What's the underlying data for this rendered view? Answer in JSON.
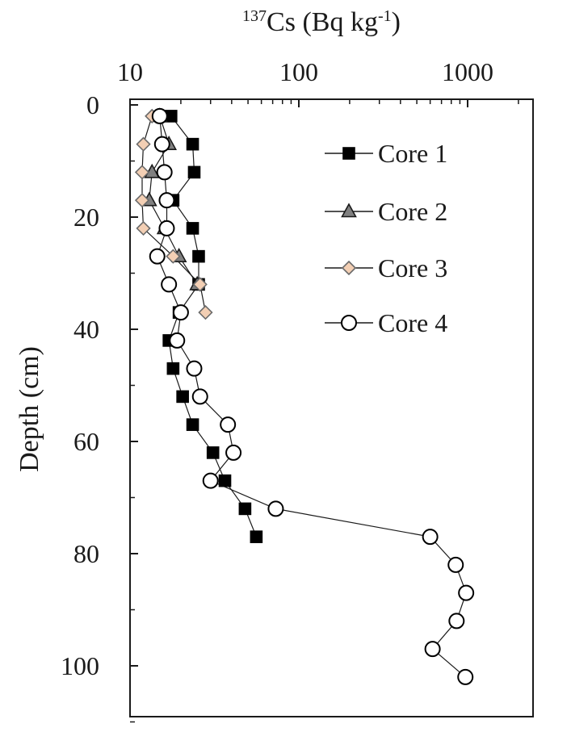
{
  "chart_data": {
    "type": "scatter",
    "title": "",
    "xlabel": {
      "base": "Cs (Bq kg",
      "mass_number": "137",
      "exponent": "-1",
      "close": ")"
    },
    "ylabel": "Depth (cm)",
    "x_scale": "log",
    "x_axis_position": "top",
    "y_inverted": true,
    "xlim": [
      10,
      2000
    ],
    "ylim": [
      0,
      110
    ],
    "xticks": [
      10,
      100,
      1000
    ],
    "xtick_labels": [
      "10",
      "100",
      "1000"
    ],
    "yticks": [
      0,
      20,
      40,
      60,
      80,
      100
    ],
    "ytick_labels": [
      "0",
      "20",
      "40",
      "60",
      "80",
      "100"
    ],
    "grid": false,
    "legend": "top-right",
    "series": [
      {
        "name": "Core 1",
        "marker": "square",
        "fill": "#000000",
        "stroke": "#000000",
        "points": [
          {
            "x": 17.5,
            "y": 2
          },
          {
            "x": 23.5,
            "y": 7
          },
          {
            "x": 24,
            "y": 12
          },
          {
            "x": 18,
            "y": 17
          },
          {
            "x": 23.5,
            "y": 22
          },
          {
            "x": 25.5,
            "y": 27
          },
          {
            "x": 25.5,
            "y": 32
          },
          {
            "x": 19.5,
            "y": 37
          },
          {
            "x": 17,
            "y": 42
          },
          {
            "x": 18,
            "y": 47
          },
          {
            "x": 20.5,
            "y": 52
          },
          {
            "x": 23.5,
            "y": 57
          },
          {
            "x": 31,
            "y": 62
          },
          {
            "x": 36.5,
            "y": 67
          },
          {
            "x": 48,
            "y": 72
          },
          {
            "x": 56,
            "y": 77
          }
        ]
      },
      {
        "name": "Core 2",
        "marker": "triangle",
        "fill": "#808080",
        "stroke": "#1a1a1a",
        "points": [
          {
            "x": 15,
            "y": 2
          },
          {
            "x": 17,
            "y": 7
          },
          {
            "x": 13.5,
            "y": 12
          },
          {
            "x": 13,
            "y": 17
          },
          {
            "x": 16,
            "y": 22
          },
          {
            "x": 19.5,
            "y": 27
          },
          {
            "x": 25,
            "y": 32
          }
        ]
      },
      {
        "name": "Core 3",
        "marker": "diamond",
        "fill": "#f3cfb4",
        "stroke": "#6a6a6a",
        "points": [
          {
            "x": 13.5,
            "y": 2
          },
          {
            "x": 12,
            "y": 7
          },
          {
            "x": 11.8,
            "y": 12
          },
          {
            "x": 11.8,
            "y": 17
          },
          {
            "x": 12,
            "y": 22
          },
          {
            "x": 18,
            "y": 27
          },
          {
            "x": 26,
            "y": 32
          },
          {
            "x": 28,
            "y": 37
          }
        ]
      },
      {
        "name": "Core 4",
        "marker": "circle",
        "fill": "#ffffff",
        "stroke": "#000000",
        "points": [
          {
            "x": 15,
            "y": 2
          },
          {
            "x": 15.5,
            "y": 7
          },
          {
            "x": 16,
            "y": 12
          },
          {
            "x": 16.5,
            "y": 17
          },
          {
            "x": 16.5,
            "y": 22
          },
          {
            "x": 14.5,
            "y": 27
          },
          {
            "x": 17,
            "y": 32
          },
          {
            "x": 20,
            "y": 37
          },
          {
            "x": 19,
            "y": 42
          },
          {
            "x": 24,
            "y": 47
          },
          {
            "x": 26,
            "y": 52
          },
          {
            "x": 38,
            "y": 57
          },
          {
            "x": 41,
            "y": 62
          },
          {
            "x": 30,
            "y": 67
          },
          {
            "x": 73,
            "y": 72
          },
          {
            "x": 600,
            "y": 77
          },
          {
            "x": 850,
            "y": 82
          },
          {
            "x": 980,
            "y": 87
          },
          {
            "x": 860,
            "y": 92
          },
          {
            "x": 620,
            "y": 97
          },
          {
            "x": 970,
            "y": 102
          }
        ]
      }
    ]
  }
}
